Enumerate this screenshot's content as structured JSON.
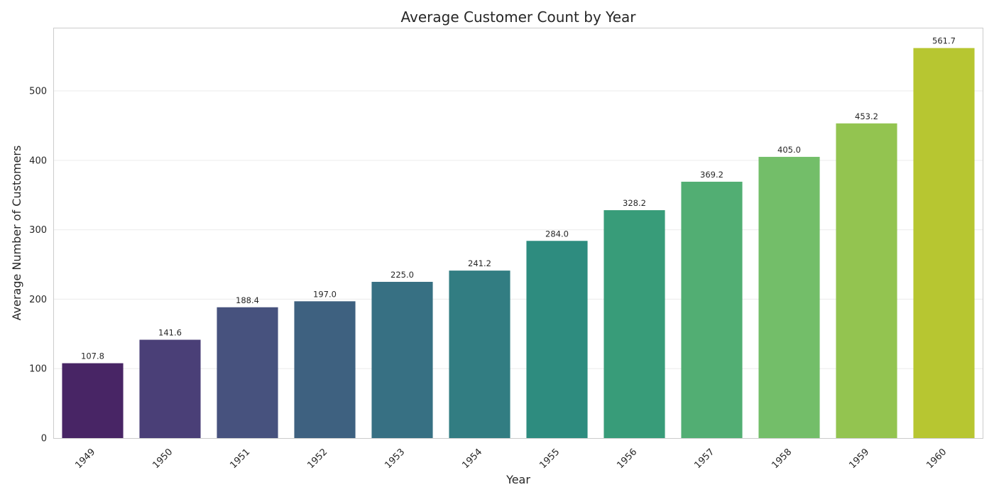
{
  "chart_data": {
    "type": "bar",
    "title": "Average Customer Count by Year",
    "xlabel": "Year",
    "ylabel": "Average Number of Customers",
    "categories": [
      "1949",
      "1950",
      "1951",
      "1952",
      "1953",
      "1954",
      "1955",
      "1956",
      "1957",
      "1958",
      "1959",
      "1960"
    ],
    "values": [
      107.8,
      141.6,
      188.4,
      197.0,
      225.0,
      241.2,
      284.0,
      328.2,
      369.2,
      405.0,
      453.2,
      561.7
    ],
    "data_labels": [
      "107.8",
      "141.6",
      "188.4",
      "197.0",
      "225.0",
      "241.2",
      "284.0",
      "328.2",
      "369.2",
      "405.0",
      "453.2",
      "561.7"
    ],
    "ylim": [
      0,
      590
    ],
    "yticks": [
      0,
      100,
      200,
      300,
      400,
      500
    ],
    "grid": true,
    "legend": false,
    "colors": [
      "#482565",
      "#4a3f77",
      "#47527e",
      "#3e6180",
      "#377083",
      "#327d82",
      "#2e8c7f",
      "#389c79",
      "#52ae73",
      "#73be69",
      "#93c450",
      "#b7c631"
    ]
  }
}
